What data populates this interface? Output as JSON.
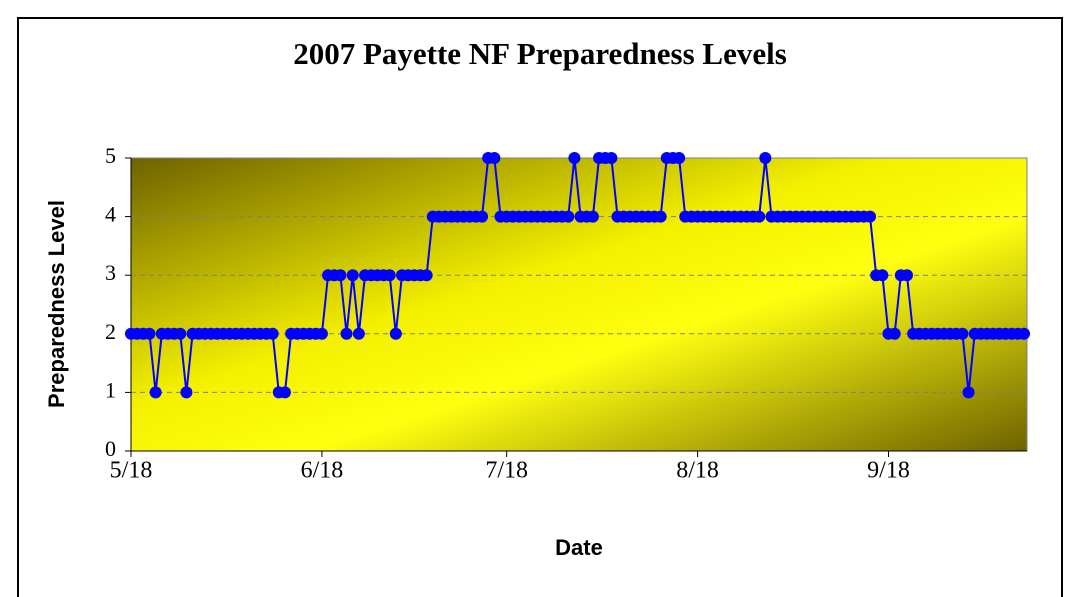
{
  "chart_data": {
    "type": "line",
    "title": "2007 Payette NF Preparedness Levels",
    "x_label": "Date",
    "y_label": "Preparedness Level",
    "x": [
      "5/18",
      "5/19",
      "5/20",
      "5/21",
      "5/22",
      "5/23",
      "5/24",
      "5/25",
      "5/26",
      "5/27",
      "5/28",
      "5/29",
      "5/30",
      "5/31",
      "6/1",
      "6/2",
      "6/3",
      "6/4",
      "6/5",
      "6/6",
      "6/7",
      "6/8",
      "6/9",
      "6/10",
      "6/11",
      "6/12",
      "6/13",
      "6/14",
      "6/15",
      "6/16",
      "6/17",
      "6/18",
      "6/19",
      "6/20",
      "6/21",
      "6/22",
      "6/23",
      "6/24",
      "6/25",
      "6/26",
      "6/27",
      "6/28",
      "6/29",
      "6/30",
      "7/1",
      "7/2",
      "7/3",
      "7/4",
      "7/5",
      "7/6",
      "7/7",
      "7/8",
      "7/9",
      "7/10",
      "7/11",
      "7/12",
      "7/13",
      "7/14",
      "7/15",
      "7/16",
      "7/17",
      "7/18",
      "7/19",
      "7/20",
      "7/21",
      "7/22",
      "7/23",
      "7/24",
      "7/25",
      "7/26",
      "7/27",
      "7/28",
      "7/29",
      "7/30",
      "7/31",
      "8/1",
      "8/2",
      "8/3",
      "8/4",
      "8/5",
      "8/6",
      "8/7",
      "8/8",
      "8/9",
      "8/10",
      "8/11",
      "8/12",
      "8/13",
      "8/14",
      "8/15",
      "8/16",
      "8/17",
      "8/18",
      "8/19",
      "8/20",
      "8/21",
      "8/22",
      "8/23",
      "8/24",
      "8/25",
      "8/26",
      "8/27",
      "8/28",
      "8/29",
      "8/30",
      "8/31",
      "9/1",
      "9/2",
      "9/3",
      "9/4",
      "9/5",
      "9/6",
      "9/7",
      "9/8",
      "9/9",
      "9/10",
      "9/11",
      "9/12",
      "9/13",
      "9/14",
      "9/15",
      "9/16",
      "9/17",
      "9/18",
      "9/19",
      "9/20",
      "9/21",
      "9/22",
      "9/23",
      "9/24",
      "9/25",
      "9/26",
      "9/27",
      "9/28",
      "9/29",
      "9/30",
      "10/1",
      "10/2",
      "10/3",
      "10/4",
      "10/5",
      "10/6",
      "10/7",
      "10/8",
      "10/9",
      "10/10"
    ],
    "values": [
      2,
      2,
      2,
      2,
      1,
      2,
      2,
      2,
      2,
      1,
      2,
      2,
      2,
      2,
      2,
      2,
      2,
      2,
      2,
      2,
      2,
      2,
      2,
      2,
      1,
      1,
      2,
      2,
      2,
      2,
      2,
      2,
      3,
      3,
      3,
      2,
      3,
      2,
      3,
      3,
      3,
      3,
      3,
      2,
      3,
      3,
      3,
      3,
      3,
      4,
      4,
      4,
      4,
      4,
      4,
      4,
      4,
      4,
      5,
      5,
      4,
      4,
      4,
      4,
      4,
      4,
      4,
      4,
      4,
      4,
      4,
      4,
      5,
      4,
      4,
      4,
      5,
      5,
      5,
      4,
      4,
      4,
      4,
      4,
      4,
      4,
      4,
      5,
      5,
      5,
      4,
      4,
      4,
      4,
      4,
      4,
      4,
      4,
      4,
      4,
      4,
      4,
      4,
      5,
      4,
      4,
      4,
      4,
      4,
      4,
      4,
      4,
      4,
      4,
      4,
      4,
      4,
      4,
      4,
      4,
      4,
      3,
      3,
      2,
      2,
      3,
      3,
      2,
      2,
      2,
      2,
      2,
      2,
      2,
      2,
      2,
      1,
      2,
      2,
      2,
      2,
      2,
      2,
      2,
      2,
      2
    ],
    "color": "#0000ff",
    "xticks": [
      "5/18",
      "6/18",
      "7/18",
      "8/18",
      "9/18"
    ],
    "ylim": [
      0,
      5
    ],
    "yticks": [
      0,
      1,
      2,
      3,
      4,
      5
    ],
    "grid": true
  }
}
